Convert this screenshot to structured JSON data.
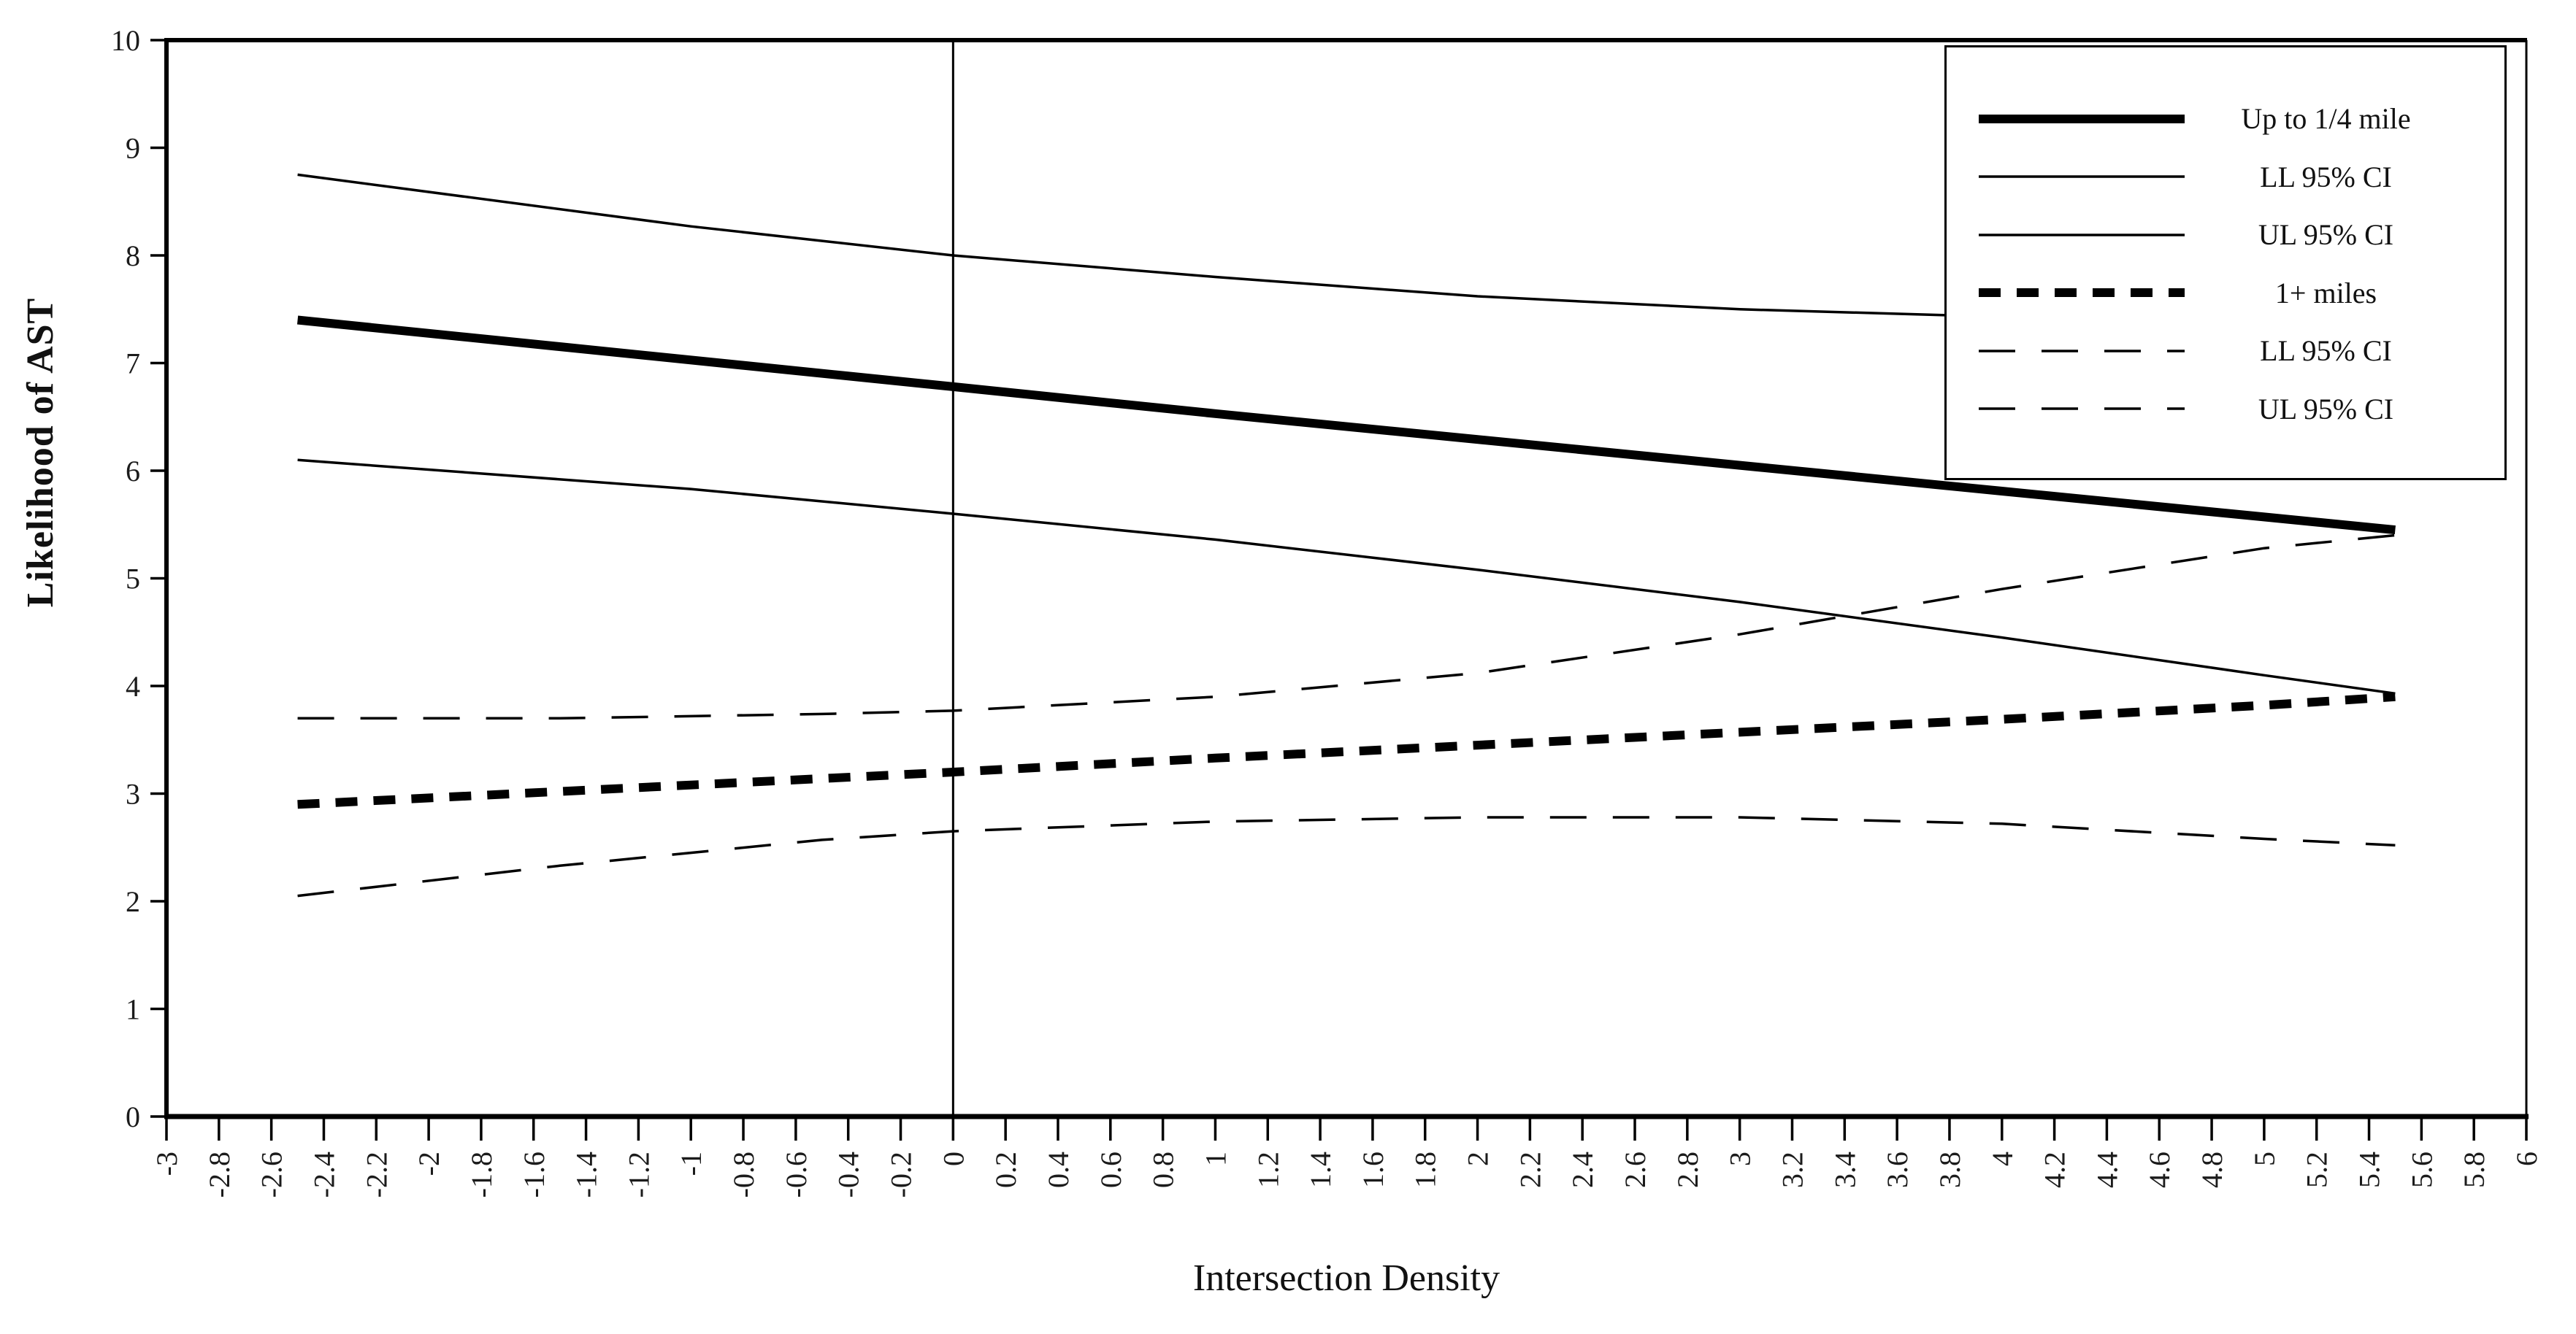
{
  "colors": {
    "line": "#000000",
    "background": "#ffffff",
    "text": "#111111"
  },
  "chart_data": {
    "type": "line",
    "title": "",
    "xlabel": "Intersection Density",
    "ylabel": "Likelihood of AST",
    "xlim": [
      -3,
      6
    ],
    "ylim": [
      0,
      10
    ],
    "grid": "off",
    "legend_position": "top-right",
    "reference_line_x": 0,
    "x_ticks": [
      "-3",
      "-2.8",
      "-2.6",
      "-2.4",
      "-2.2",
      "-2",
      "-1.8",
      "-1.6",
      "-1.4",
      "-1.2",
      "-1",
      "-0.8",
      "-0.6",
      "-0.4",
      "-0.2",
      "0",
      "0.2",
      "0.4",
      "0.6",
      "0.8",
      "1",
      "1.2",
      "1.4",
      "1.6",
      "1.8",
      "2",
      "2.2",
      "2.4",
      "2.6",
      "2.8",
      "3",
      "3.2",
      "3.4",
      "3.6",
      "3.8",
      "4",
      "4.2",
      "4.4",
      "4.6",
      "4.8",
      "5",
      "5.2",
      "5.4",
      "5.6",
      "5.8",
      "6"
    ],
    "y_ticks": [
      "0",
      "1",
      "2",
      "3",
      "4",
      "5",
      "6",
      "7",
      "8",
      "9",
      "10"
    ],
    "series": [
      {
        "name": "Up to 1/4 mile",
        "style": "thick-solid",
        "points": [
          [
            -2.5,
            7.4
          ],
          [
            0,
            6.78
          ],
          [
            1,
            6.53
          ],
          [
            2,
            6.29
          ],
          [
            3,
            6.05
          ],
          [
            4,
            5.81
          ],
          [
            5,
            5.57
          ],
          [
            5.5,
            5.45
          ]
        ]
      },
      {
        "name": "LL 95% CI",
        "group": "Up to 1/4 mile",
        "style": "thin-solid",
        "points": [
          [
            -2.5,
            6.1
          ],
          [
            -1,
            5.83
          ],
          [
            0,
            5.6
          ],
          [
            1,
            5.36
          ],
          [
            2,
            5.08
          ],
          [
            3,
            4.78
          ],
          [
            4,
            4.45
          ],
          [
            5,
            4.1
          ],
          [
            5.5,
            3.93
          ]
        ]
      },
      {
        "name": "UL 95% CI",
        "group": "Up to 1/4 mile",
        "style": "thin-solid",
        "points": [
          [
            -2.5,
            8.75
          ],
          [
            -1,
            8.27
          ],
          [
            0,
            8.0
          ],
          [
            1,
            7.8
          ],
          [
            2,
            7.62
          ],
          [
            3,
            7.5
          ],
          [
            4,
            7.43
          ],
          [
            5,
            7.38
          ],
          [
            5.5,
            7.36
          ]
        ]
      },
      {
        "name": "1+ miles",
        "style": "thick-dashed",
        "points": [
          [
            -2.5,
            2.9
          ],
          [
            0,
            3.2
          ],
          [
            1,
            3.33
          ],
          [
            2,
            3.45
          ],
          [
            3,
            3.57
          ],
          [
            4,
            3.69
          ],
          [
            5,
            3.82
          ],
          [
            5.5,
            3.9
          ]
        ]
      },
      {
        "name": "LL 95% CI",
        "group": "1+ miles",
        "style": "thin-longdash",
        "points": [
          [
            -2.5,
            2.05
          ],
          [
            -1.5,
            2.33
          ],
          [
            -0.5,
            2.57
          ],
          [
            0,
            2.65
          ],
          [
            1,
            2.74
          ],
          [
            2,
            2.78
          ],
          [
            3,
            2.78
          ],
          [
            4,
            2.72
          ],
          [
            5,
            2.58
          ],
          [
            5.5,
            2.52
          ]
        ]
      },
      {
        "name": "UL 95% CI",
        "group": "1+ miles",
        "style": "thin-longdash",
        "points": [
          [
            -2.5,
            3.7
          ],
          [
            -1.5,
            3.7
          ],
          [
            -0.5,
            3.74
          ],
          [
            0,
            3.77
          ],
          [
            1,
            3.9
          ],
          [
            2,
            4.12
          ],
          [
            3,
            4.48
          ],
          [
            4,
            4.9
          ],
          [
            5,
            5.28
          ],
          [
            5.5,
            5.4
          ]
        ]
      }
    ],
    "legend_entries": [
      {
        "label": "Up to 1/4 mile",
        "style": "thick-solid"
      },
      {
        "label": "LL 95% CI",
        "style": "thin-solid"
      },
      {
        "label": "UL 95% CI",
        "style": "thin-solid"
      },
      {
        "label": "1+ miles",
        "style": "thick-dashed"
      },
      {
        "label": "LL 95% CI",
        "style": "thin-longdash"
      },
      {
        "label": "UL 95% CI",
        "style": "thin-longdash"
      }
    ]
  }
}
